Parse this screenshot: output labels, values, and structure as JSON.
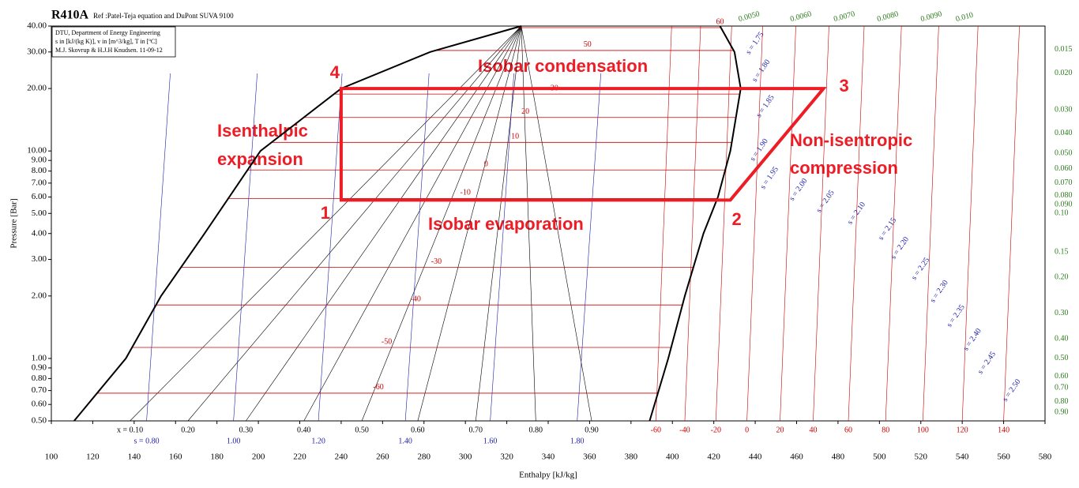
{
  "chart_data": {
    "type": "line",
    "title": "R410A",
    "subtitle": "Ref :Patel-Teja equation and DuPont SUVA 9100",
    "info": [
      "DTU, Department of Energy Engineering",
      "s in [kJ/(kg K)], v in [m^3/kg], T in [ºC]",
      "M.J. Skovrup & H.J.H Knudsen. 11-09-12"
    ],
    "xlabel": "Enthalpy [kJ/kg]",
    "ylabel": "Pressure [Bar]",
    "xlim": [
      100,
      580
    ],
    "xticks": [
      100,
      120,
      140,
      160,
      180,
      200,
      220,
      240,
      260,
      280,
      300,
      320,
      340,
      360,
      380,
      400,
      420,
      440,
      460,
      480,
      500,
      520,
      540,
      560,
      580
    ],
    "ylim": [
      0.5,
      40
    ],
    "log_y": true,
    "yticks": [
      {
        "value": 0.5,
        "label": "0.50"
      },
      {
        "value": 0.6,
        "label": "0.60"
      },
      {
        "value": 0.7,
        "label": "0.70"
      },
      {
        "value": 0.8,
        "label": "0.80"
      },
      {
        "value": 0.9,
        "label": "0.90"
      },
      {
        "value": 1,
        "label": "1.00"
      },
      {
        "value": 2,
        "label": "2.00"
      },
      {
        "value": 3,
        "label": "3.00"
      },
      {
        "value": 4,
        "label": "4.00"
      },
      {
        "value": 5,
        "label": "5.00"
      },
      {
        "value": 6,
        "label": "6.00"
      },
      {
        "value": 7,
        "label": "7.00"
      },
      {
        "value": 8,
        "label": "8.00"
      },
      {
        "value": 9,
        "label": "9.00"
      },
      {
        "value": 10,
        "label": "10.00"
      },
      {
        "value": 20,
        "label": "20.00"
      },
      {
        "value": 30,
        "label": "30.00"
      },
      {
        "value": 40,
        "label": "40.00"
      }
    ],
    "saturation": {
      "color": "#000000",
      "liquid": {
        "h": [
          111,
          136,
          153,
          174,
          201,
          240,
          283,
          327
        ],
        "p": [
          0.5,
          1,
          2,
          4,
          10,
          20,
          30,
          40
        ]
      },
      "vapor": {
        "h": [
          389,
          398,
          406,
          415,
          422,
          428,
          433,
          430,
          423
        ],
        "p": [
          0.5,
          1,
          2,
          4,
          6,
          10,
          20,
          30,
          40
        ]
      }
    },
    "isotherms": {
      "color": "#cc0000",
      "items": [
        {
          "t": -60,
          "p": 0.68,
          "label_h": 258
        },
        {
          "t": -50,
          "p": 1.13,
          "label_h": 262
        },
        {
          "t": -40,
          "p": 1.81,
          "label_h": 276
        },
        {
          "t": -30,
          "p": 2.75,
          "label_h": 286
        },
        {
          "t": -10,
          "p": 5.9,
          "label_h": 300
        },
        {
          "t": 0,
          "p": 8.1,
          "label_h": 310
        },
        {
          "t": 10,
          "p": 11,
          "label_h": 324
        },
        {
          "t": 20,
          "p": 14.5,
          "label_h": 329
        },
        {
          "t": 30,
          "p": 18.8,
          "label_h": 343
        },
        {
          "t": 50,
          "p": 30.5,
          "label_h": 359
        },
        {
          "t": 60,
          "p": 39.3,
          "label_h": 423
        }
      ]
    },
    "quality": {
      "color": "#000000",
      "items": [
        {
          "h": 138,
          "label": "x = 0.10"
        },
        {
          "h": 166,
          "label": "0.20"
        },
        {
          "h": 194,
          "label": "0.30"
        },
        {
          "h": 222,
          "label": "0.40"
        },
        {
          "h": 250,
          "label": "0.50"
        },
        {
          "h": 277,
          "label": "0.60"
        },
        {
          "h": 305,
          "label": "0.70"
        },
        {
          "h": 334,
          "label": "0.80"
        },
        {
          "h": 361,
          "label": "0.90"
        }
      ]
    },
    "entropy_bottom": {
      "color": "#1f1fa8",
      "items": [
        {
          "h": 146,
          "label": "s = 0.80"
        },
        {
          "h": 188,
          "label": "1.00"
        },
        {
          "h": 229,
          "label": "1.20"
        },
        {
          "h": 271,
          "label": "1.40"
        },
        {
          "h": 312,
          "label": "1.60"
        },
        {
          "h": 354,
          "label": "1.80"
        }
      ]
    },
    "temperature_bottom": {
      "color": "#cc0000",
      "items": [
        {
          "h": 392,
          "t": -60
        },
        {
          "h": 406,
          "t": -40
        },
        {
          "h": 421,
          "t": -20
        },
        {
          "h": 436,
          "t": 0
        },
        {
          "h": 452,
          "t": 20
        },
        {
          "h": 468,
          "t": 40
        },
        {
          "h": 485,
          "t": 60
        },
        {
          "h": 503,
          "t": 80
        },
        {
          "h": 521,
          "t": 100
        },
        {
          "h": 540,
          "t": 120
        },
        {
          "h": 560,
          "t": 140
        }
      ]
    },
    "entropy_diagonal": {
      "color": "#1f1fa8",
      "items": [
        {
          "h": 440,
          "p": 33,
          "label": "s = 1.75"
        },
        {
          "h": 443,
          "p": 24.3,
          "label": "s = 1.80"
        },
        {
          "h": 445,
          "p": 16.4,
          "label": "s = 1.85"
        },
        {
          "h": 442,
          "p": 10.1,
          "label": "s = 1.90"
        },
        {
          "h": 447,
          "p": 7.4,
          "label": "s = 1.95"
        },
        {
          "h": 461,
          "p": 6.5,
          "label": "s = 2.00"
        },
        {
          "h": 474,
          "p": 5.7,
          "label": "s = 2.05"
        },
        {
          "h": 489,
          "p": 5,
          "label": "s = 2.10"
        },
        {
          "h": 504,
          "p": 4.2,
          "label": "s = 2.15"
        },
        {
          "h": 510,
          "p": 3.4,
          "label": "s = 2.20"
        },
        {
          "h": 520,
          "p": 2.7,
          "label": "s = 2.25"
        },
        {
          "h": 529,
          "p": 2.1,
          "label": "s = 2.30"
        },
        {
          "h": 537,
          "p": 1.6,
          "label": "s = 2.35"
        },
        {
          "h": 545,
          "p": 1.23,
          "label": "s = 2.40"
        },
        {
          "h": 552,
          "p": 0.95,
          "label": "s = 2.45"
        },
        {
          "h": 564,
          "p": 0.7,
          "label": "s = 2.50"
        }
      ]
    },
    "volume_right": {
      "color": "#2e7d1e",
      "items": [
        {
          "p": 30.8,
          "label": "0.015"
        },
        {
          "p": 23.7,
          "label": "0.020"
        },
        {
          "p": 15.8,
          "label": "0.030"
        },
        {
          "p": 12.2,
          "label": "0.040"
        },
        {
          "p": 9.75,
          "label": "0.050"
        },
        {
          "p": 8.2,
          "label": "0.060"
        },
        {
          "p": 7,
          "label": "0.070"
        },
        {
          "p": 6.1,
          "label": "0.080"
        },
        {
          "p": 5.5,
          "label": "0.090"
        },
        {
          "p": 5,
          "label": "0.10"
        },
        {
          "p": 3.26,
          "label": "0.15"
        },
        {
          "p": 2.46,
          "label": "0.20"
        },
        {
          "p": 1.65,
          "label": "0.30"
        },
        {
          "p": 1.24,
          "label": "0.40"
        },
        {
          "p": 1,
          "label": "0.50"
        },
        {
          "p": 0.82,
          "label": "0.60"
        },
        {
          "p": 0.72,
          "label": "0.70"
        },
        {
          "p": 0.62,
          "label": "0.80"
        },
        {
          "p": 0.55,
          "label": "0.90"
        }
      ]
    },
    "volume_top": {
      "color": "#2e7d1e",
      "items": [
        {
          "h": 432,
          "label": "0.0050"
        },
        {
          "h": 457,
          "label": "0.0060"
        },
        {
          "h": 478,
          "label": "0.0070"
        },
        {
          "h": 499,
          "label": "0.0080"
        },
        {
          "h": 520,
          "label": "0.0090"
        },
        {
          "h": 537,
          "label": "0.010"
        }
      ]
    },
    "cycle": {
      "color": "#ee1c25",
      "h": [
        240,
        428,
        473,
        240
      ],
      "p": [
        5.8,
        5.8,
        20,
        20
      ],
      "labels": [
        "1",
        "2",
        "3",
        "4"
      ]
    },
    "annotations": [
      "Isobar condensation",
      "Isenthalpic",
      "expansion",
      "Non-isentropic",
      "compression",
      "Isobar evaporation"
    ]
  }
}
